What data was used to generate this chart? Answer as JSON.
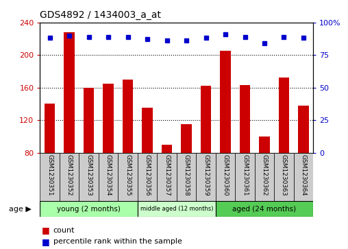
{
  "title": "GDS4892 / 1434003_a_at",
  "samples": [
    "GSM1230351",
    "GSM1230352",
    "GSM1230353",
    "GSM1230354",
    "GSM1230355",
    "GSM1230356",
    "GSM1230357",
    "GSM1230358",
    "GSM1230359",
    "GSM1230360",
    "GSM1230361",
    "GSM1230362",
    "GSM1230363",
    "GSM1230364"
  ],
  "counts": [
    140,
    228,
    160,
    165,
    170,
    135,
    90,
    115,
    162,
    205,
    163,
    100,
    172,
    138
  ],
  "percentiles": [
    88,
    90,
    89,
    89,
    89,
    87,
    86,
    86,
    88,
    91,
    89,
    84,
    89,
    88
  ],
  "groups": [
    {
      "label": "young (2 months)",
      "start": 0,
      "end": 5,
      "color": "#aaffaa"
    },
    {
      "label": "middle aged (12 months)",
      "start": 5,
      "end": 9,
      "color": "#ccffcc"
    },
    {
      "label": "aged (24 months)",
      "start": 9,
      "end": 14,
      "color": "#55cc55"
    }
  ],
  "ylim_left": [
    80,
    240
  ],
  "ylim_right": [
    0,
    100
  ],
  "yticks_left": [
    80,
    120,
    160,
    200,
    240
  ],
  "yticks_right": [
    0,
    25,
    50,
    75,
    100
  ],
  "ytick_labels_right": [
    "0",
    "25",
    "50",
    "75",
    "100%"
  ],
  "bar_color": "#cc0000",
  "dot_color": "#0000cc",
  "bg_color": "#ffffff",
  "tick_area_color": "#cccccc",
  "left_tick_color": "#cc0000",
  "right_tick_color": "#0000cc",
  "bar_bottom": 80
}
